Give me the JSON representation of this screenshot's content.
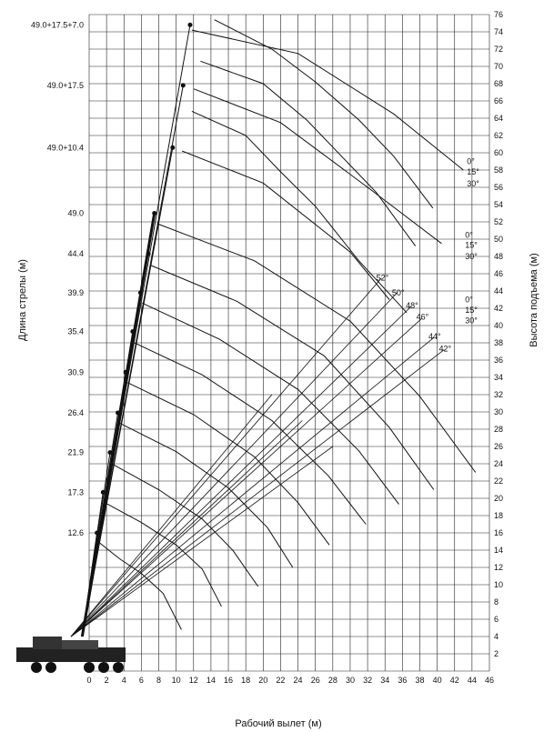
{
  "chart_data": {
    "type": "line",
    "title": "",
    "xlabel": "Рабочий вылет (м)",
    "ylabel_left": "Длина стрелы (м)",
    "ylabel_right": "Высота подъема (м)",
    "xlim": [
      0,
      46
    ],
    "ylim": [
      0,
      76
    ],
    "x_ticks": [
      0,
      2,
      4,
      6,
      8,
      10,
      12,
      14,
      16,
      18,
      20,
      22,
      24,
      26,
      28,
      30,
      32,
      34,
      36,
      38,
      40,
      42,
      44,
      46
    ],
    "y_ticks": [
      2,
      4,
      6,
      8,
      10,
      12,
      14,
      16,
      18,
      20,
      22,
      24,
      26,
      28,
      30,
      32,
      34,
      36,
      38,
      40,
      42,
      44,
      46,
      48,
      50,
      52,
      54,
      56,
      58,
      60,
      62,
      64,
      66,
      68,
      70,
      72,
      74,
      76
    ],
    "grid": true,
    "boom_labels": [
      {
        "label": "12.6",
        "y": 16
      },
      {
        "label": "17.3",
        "y": 20.7
      },
      {
        "label": "21.9",
        "y": 25.3
      },
      {
        "label": "26.4",
        "y": 29.9
      },
      {
        "label": "30.9",
        "y": 34.6
      },
      {
        "label": "35.4",
        "y": 39.3
      },
      {
        "label": "39.9",
        "y": 43.8
      },
      {
        "label": "44.4",
        "y": 48.3
      },
      {
        "label": "49.0",
        "y": 53
      },
      {
        "label": "49.0+10.4",
        "y": 60.6
      },
      {
        "label": "49.0+17.5",
        "y": 67.8
      },
      {
        "label": "49.0+17.5+7.0",
        "y": 74.8
      }
    ],
    "boom_tips": [
      {
        "label": "12.6",
        "x": 0.9,
        "y": 16
      },
      {
        "label": "17.3",
        "x": 1.6,
        "y": 20.7
      },
      {
        "label": "21.9",
        "x": 2.4,
        "y": 25.3
      },
      {
        "label": "26.4",
        "x": 3.3,
        "y": 29.9
      },
      {
        "label": "30.9",
        "x": 4.2,
        "y": 34.6
      },
      {
        "label": "35.4",
        "x": 5,
        "y": 39.3
      },
      {
        "label": "39.9",
        "x": 5.9,
        "y": 43.8
      },
      {
        "label": "44.4",
        "x": 6.8,
        "y": 48.3
      },
      {
        "label": "49.0",
        "x": 7.5,
        "y": 53
      },
      {
        "label": "49.0+10.4",
        "x": 9.6,
        "y": 60.6
      },
      {
        "label": "49.0+17.5",
        "x": 10.8,
        "y": 67.8
      },
      {
        "label": "49.0+17.5+7.0",
        "x": 11.6,
        "y": 74.8
      }
    ],
    "series": [
      {
        "points": [
          [
            1.0,
            15.0
          ],
          [
            3.5,
            13.0
          ],
          [
            6.0,
            11.3
          ],
          [
            8.5,
            9.0
          ],
          [
            10.6,
            4.8
          ]
        ]
      },
      {
        "points": [
          [
            1.8,
            19.5
          ],
          [
            6,
            17.2
          ],
          [
            10,
            14.6
          ],
          [
            13,
            11.8
          ],
          [
            15.2,
            7.5
          ]
        ]
      },
      {
        "points": [
          [
            2.6,
            24.0
          ],
          [
            8,
            21.0
          ],
          [
            13,
            17.6
          ],
          [
            16.5,
            14.0
          ],
          [
            19.4,
            9.8
          ]
        ]
      },
      {
        "points": [
          [
            3.5,
            28.7
          ],
          [
            10,
            25.4
          ],
          [
            16,
            21.2
          ],
          [
            20.5,
            16.6
          ],
          [
            23.4,
            12.0
          ]
        ]
      },
      {
        "points": [
          [
            4.4,
            33.4
          ],
          [
            12,
            29.7
          ],
          [
            19,
            24.8
          ],
          [
            24,
            19.5
          ],
          [
            27.6,
            14.6
          ]
        ]
      },
      {
        "points": [
          [
            5.2,
            38.0
          ],
          [
            13,
            34.3
          ],
          [
            21,
            29.0
          ],
          [
            27.5,
            22.6
          ],
          [
            31.8,
            17.0
          ]
        ]
      },
      {
        "points": [
          [
            6.1,
            42.6
          ],
          [
            15,
            38.4
          ],
          [
            24,
            32.6
          ],
          [
            31,
            25.5
          ],
          [
            35.6,
            19.3
          ]
        ]
      },
      {
        "points": [
          [
            7.0,
            47.0
          ],
          [
            17,
            42.8
          ],
          [
            27,
            36.5
          ],
          [
            34.5,
            28.2
          ],
          [
            39.6,
            21.0
          ]
        ]
      },
      {
        "points": [
          [
            7.8,
            51.8
          ],
          [
            19,
            47.5
          ],
          [
            30,
            40.5
          ],
          [
            38,
            31.8
          ],
          [
            44.4,
            23.0
          ]
        ]
      },
      {
        "points": [
          [
            11.8,
            64.8
          ],
          [
            18,
            62.0
          ],
          [
            22,
            57.8
          ],
          [
            26,
            53.8
          ],
          [
            31,
            47.5
          ],
          [
            36.5,
            41.5
          ]
        ]
      },
      {
        "points": [
          [
            12.8,
            70.6
          ],
          [
            20,
            68.0
          ],
          [
            25,
            63.8
          ],
          [
            29,
            59.6
          ],
          [
            33,
            55.4
          ],
          [
            37.5,
            49.2
          ]
        ]
      },
      {
        "points": [
          [
            14.4,
            75.4
          ],
          [
            21,
            72.0
          ],
          [
            26,
            68.2
          ],
          [
            31,
            63.8
          ],
          [
            35,
            59.6
          ],
          [
            39.5,
            53.6
          ]
        ]
      },
      {
        "points": [
          [
            10.7,
            60.2
          ],
          [
            20,
            56.5
          ],
          [
            30,
            48.5
          ],
          [
            34.5,
            43.0
          ]
        ]
      },
      {
        "points": [
          [
            12.0,
            67.4
          ],
          [
            22,
            63.5
          ],
          [
            32,
            56.0
          ],
          [
            40.5,
            49.5
          ]
        ]
      },
      {
        "points": [
          [
            11.8,
            74.2
          ],
          [
            24,
            71.5
          ],
          [
            35,
            64.5
          ],
          [
            43.0,
            58.0
          ]
        ]
      }
    ],
    "jib_offsets": [
      {
        "group": "49.0+10.4",
        "labels": [
          "0°",
          "15°",
          "30°"
        ],
        "y": [
          43.0,
          41.8,
          40.6
        ]
      },
      {
        "group": "49.0+17.5",
        "labels": [
          "0°",
          "15°",
          "30°"
        ],
        "y": [
          50.5,
          49.3,
          48.0
        ]
      },
      {
        "group": "49.0+17.5+7.0",
        "labels": [
          "0°",
          "15°",
          "30°"
        ],
        "y": [
          59.0,
          57.8,
          56.4
        ]
      }
    ],
    "angle_labels": [
      {
        "label": "52°",
        "x": 33.0,
        "y": 45.2
      },
      {
        "label": "50°",
        "x": 34.8,
        "y": 43.5
      },
      {
        "label": "48°",
        "x": 36.4,
        "y": 42.0
      },
      {
        "label": "46°",
        "x": 37.6,
        "y": 40.7
      },
      {
        "label": "44°",
        "x": 39.0,
        "y": 38.4
      },
      {
        "label": "42°",
        "x": 40.2,
        "y": 37.0
      }
    ],
    "angle_rays": [
      {
        "from": [
          0,
          4.0
        ],
        "to": [
          33.6,
          45.5
        ]
      },
      {
        "from": [
          0,
          4.0
        ],
        "to": [
          35.4,
          43.8
        ]
      },
      {
        "from": [
          0,
          4.0
        ],
        "to": [
          37.0,
          42.2
        ]
      },
      {
        "from": [
          0,
          4.0
        ],
        "to": [
          38.2,
          40.8
        ]
      },
      {
        "from": [
          0,
          4.0
        ],
        "to": [
          39.6,
          38.6
        ]
      },
      {
        "from": [
          0,
          4.0
        ],
        "to": [
          40.8,
          37.2
        ]
      },
      {
        "from": [
          0,
          4.0
        ],
        "to": [
          21.0,
          32.0
        ]
      },
      {
        "from": [
          0,
          4.0
        ],
        "to": [
          24.5,
          29.0
        ]
      },
      {
        "from": [
          0,
          4.0
        ],
        "to": [
          28.0,
          26.0
        ]
      }
    ]
  }
}
